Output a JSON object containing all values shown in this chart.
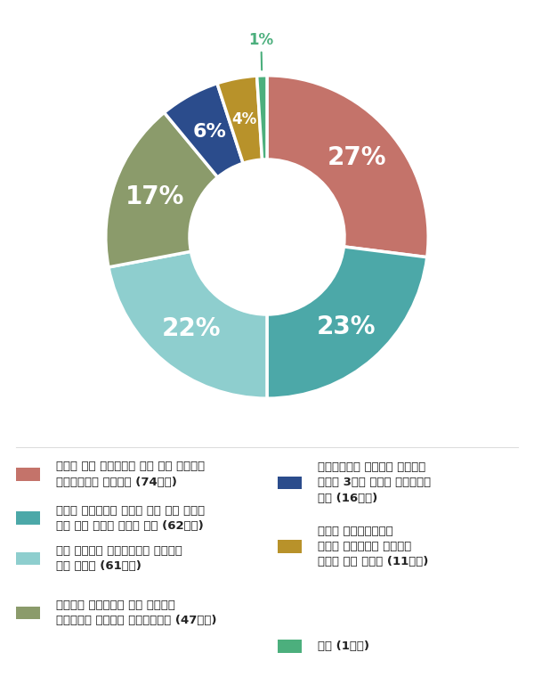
{
  "values": [
    27,
    23,
    22,
    17,
    6,
    4,
    1
  ],
  "colors": [
    "#C4736A",
    "#4CA8A8",
    "#8ECECE",
    "#8B9B6B",
    "#2B4C8C",
    "#B8922A",
    "#4CAF7D"
  ],
  "labels_pct": [
    "27%",
    "23%",
    "22%",
    "17%",
    "6%",
    "4%",
    "1%"
  ],
  "start_angle": 90,
  "background_color": "#ffffff",
  "legend_items_left": [
    {
      "color": "#C4736A",
      "lines": [
        "민간의 공급 확대방안이 빠져 있어 근본적인",
        "해결방안으로 미흡하다 (74업체)"
      ]
    },
    {
      "color": "#4CA8A8",
      "lines": [
        "아파트 전세난인데 아파트 공급 확대 방안이",
        "빠져 있어 효과에 의문이 든다 (62업체)"
      ]
    },
    {
      "color": "#8ECECE",
      "lines": [
        "숫자 채우기식 궁여지책으로 실효성이",
        "없어 보인다 (61업체)"
      ]
    },
    {
      "color": "#8B9B6B",
      "lines": [
        "숙박시설 리모델링을 통한 전세주택",
        "공급방안은 전형적인 탁상행정이다 (47업체)"
      ]
    }
  ],
  "legend_items_right": [
    {
      "color": "#2B4C8C",
      "lines": [
        "민간임대시장 정상화를 위해서는",
        "임대차 3법의 개선이 우선되어야",
        "한다 (16업체)"
      ]
    },
    {
      "color": "#B8922A",
      "lines": [
        "전세형 공공임대주택이",
        "충분히 공급된다면 어느정도",
        "효과는 있어 보인다 (11업체)"
      ]
    },
    {
      "color": "#4CAF7D",
      "lines": [
        "기타 (1업체)"
      ]
    }
  ]
}
